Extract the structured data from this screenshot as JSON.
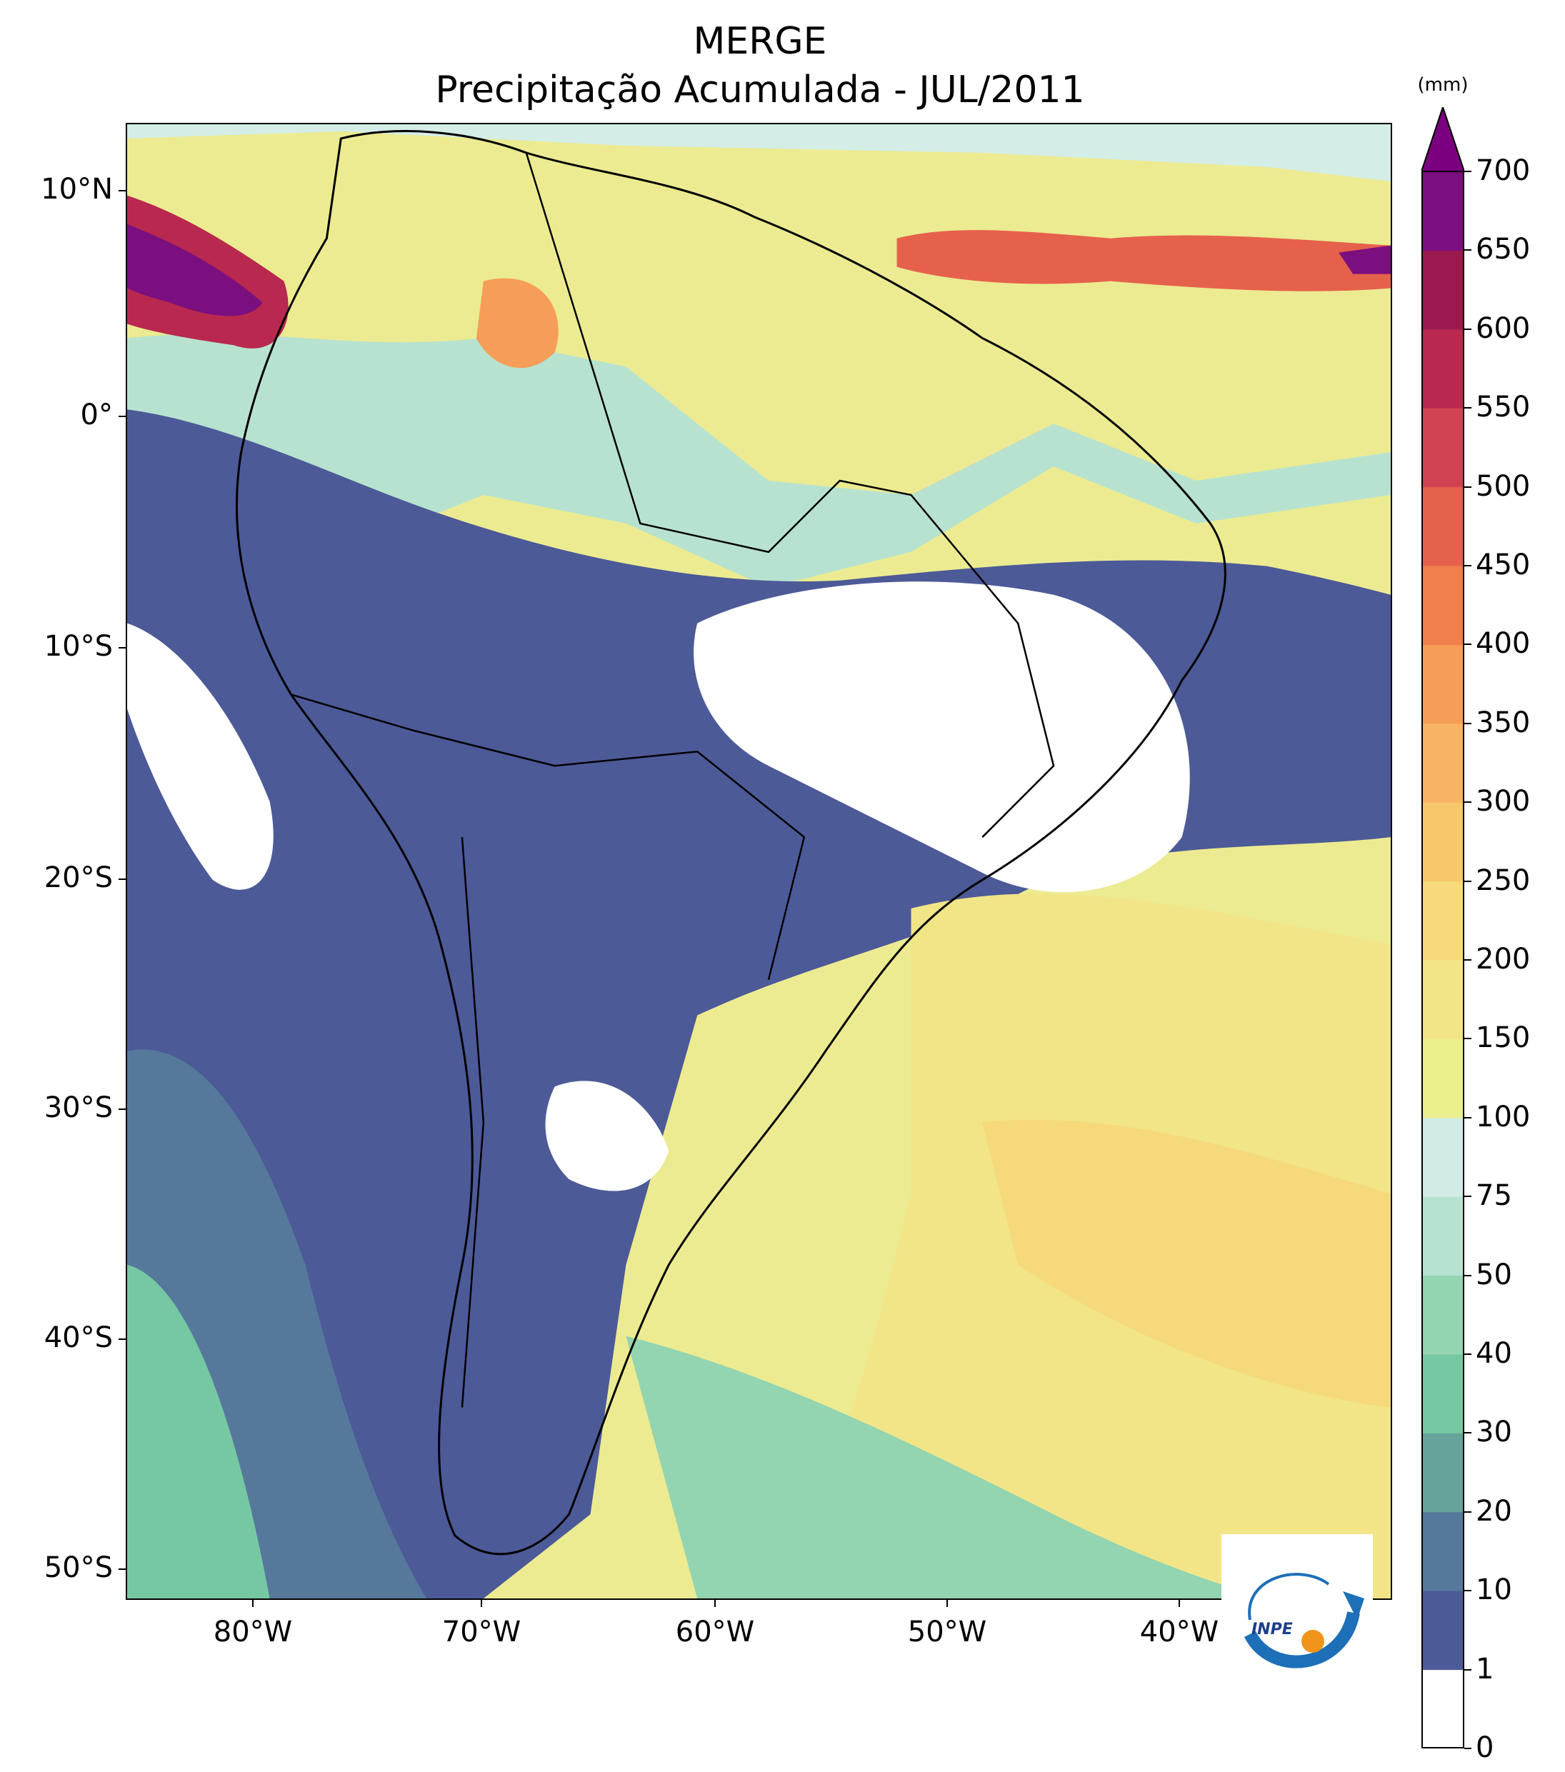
{
  "title_line1": "MERGE",
  "title_line2": "Precipitação Acumulada - JUL/2011",
  "colorbar": {
    "unit": "(mm)",
    "labels": [
      "0",
      "1",
      "10",
      "20",
      "30",
      "40",
      "50",
      "75",
      "100",
      "150",
      "200",
      "250",
      "300",
      "350",
      "400",
      "450",
      "500",
      "550",
      "600",
      "650",
      "700"
    ],
    "colors": [
      "#ffffff",
      "#4c5a98",
      "#56799b",
      "#66a39a",
      "#76c8a3",
      "#93d4b1",
      "#b7e2d0",
      "#d2ebe7",
      "#ecf08c",
      "#f2e587",
      "#f5d97a",
      "#f7c76b",
      "#f8b464",
      "#f69e57",
      "#ef7f4c",
      "#e6614c",
      "#d14352",
      "#b9284f",
      "#9a1a4d",
      "#7b0f7f"
    ],
    "extend_color": "#7b0080"
  },
  "axes": {
    "y_labels": [
      "10°N",
      "0°",
      "10°S",
      "20°S",
      "30°S",
      "40°S",
      "50°S"
    ],
    "x_labels": [
      "80°W",
      "70°W",
      "60°W",
      "50°W",
      "40°W"
    ]
  },
  "logo": {
    "text": "INPE"
  }
}
